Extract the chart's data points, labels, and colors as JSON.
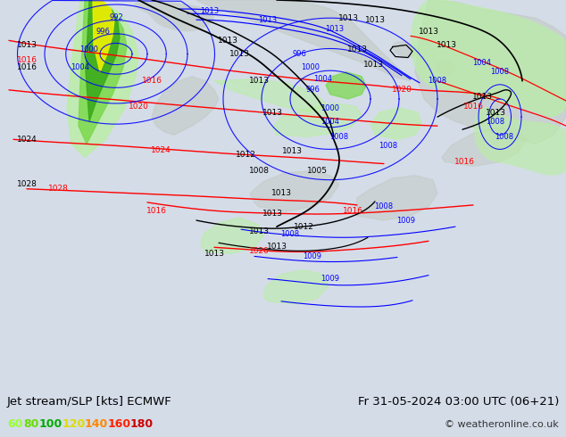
{
  "title_left": "Jet stream/SLP [kts] ECMWF",
  "title_right": "Fr 31-05-2024 03:00 UTC (06+21)",
  "copyright": "© weatheronline.co.uk",
  "legend_values": [
    "60",
    "80",
    "100",
    "120",
    "140",
    "160",
    "180"
  ],
  "legend_colors": [
    "#99ff33",
    "#66dd00",
    "#00aa00",
    "#dddd00",
    "#ff8800",
    "#ff2200",
    "#cc0000"
  ],
  "bg_color": "#d4dce8",
  "map_bg": "#dce4ec",
  "bottom_bar_color": "#c0ccd8",
  "figsize": [
    6.34,
    4.9
  ],
  "dpi": 100,
  "green_light": "#b8f0a0",
  "green_mid": "#78d848",
  "green_dark": "#38a818",
  "yellow": "#f0f000",
  "gray_land": "#c0c8c0"
}
